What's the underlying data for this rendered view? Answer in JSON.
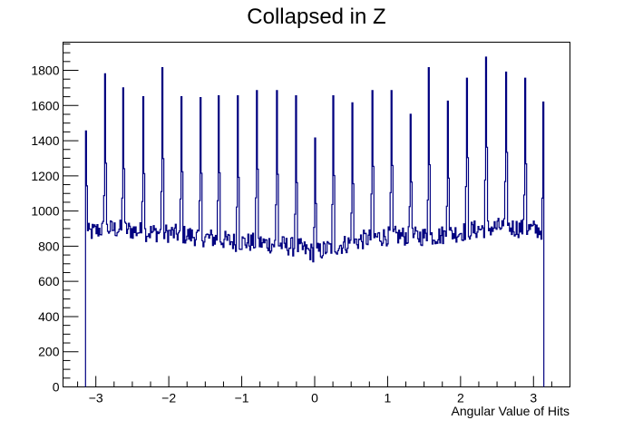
{
  "chart_data": {
    "type": "histogram-step",
    "title": "Collapsed in Z",
    "xlabel": "Angular Value of Hits",
    "ylabel": "",
    "xlim": [
      -3.45,
      3.5
    ],
    "ylim": [
      0,
      1960
    ],
    "x_ticks": [
      -3,
      -2,
      -1,
      0,
      1,
      2,
      3
    ],
    "x_tick_labels": [
      "−3",
      "−2",
      "−1",
      "0",
      "1",
      "2",
      "3"
    ],
    "y_ticks": [
      0,
      200,
      400,
      600,
      800,
      1000,
      1200,
      1400,
      1600,
      1800
    ],
    "y_tick_labels": [
      "0",
      "200",
      "400",
      "600",
      "800",
      "1000",
      "1200",
      "1400",
      "1600",
      "1800"
    ],
    "grid": false,
    "line_color": "#000080",
    "data_range": [
      -3.1416,
      3.1416
    ],
    "baseline": [
      [
        -3.14,
        870
      ],
      [
        -2.9,
        900
      ],
      [
        -2.6,
        895
      ],
      [
        -2.3,
        880
      ],
      [
        -2.0,
        875
      ],
      [
        -1.7,
        860
      ],
      [
        -1.4,
        845
      ],
      [
        -1.1,
        825
      ],
      [
        -0.8,
        820
      ],
      [
        -0.5,
        810
      ],
      [
        -0.2,
        790
      ],
      [
        0.0,
        760
      ],
      [
        0.2,
        790
      ],
      [
        0.5,
        820
      ],
      [
        0.8,
        850
      ],
      [
        1.1,
        860
      ],
      [
        1.4,
        855
      ],
      [
        1.7,
        860
      ],
      [
        2.0,
        880
      ],
      [
        2.3,
        900
      ],
      [
        2.6,
        910
      ],
      [
        2.9,
        900
      ],
      [
        3.14,
        890
      ]
    ],
    "spikes": [
      {
        "x": -3.138,
        "y": 1455
      },
      {
        "x": -2.87,
        "y": 1780
      },
      {
        "x": -2.62,
        "y": 1700
      },
      {
        "x": -2.35,
        "y": 1650
      },
      {
        "x": -2.09,
        "y": 1815
      },
      {
        "x": -1.83,
        "y": 1650
      },
      {
        "x": -1.57,
        "y": 1645
      },
      {
        "x": -1.31,
        "y": 1655
      },
      {
        "x": -1.05,
        "y": 1655
      },
      {
        "x": -0.79,
        "y": 1685
      },
      {
        "x": -0.52,
        "y": 1685
      },
      {
        "x": -0.26,
        "y": 1655
      },
      {
        "x": 0.0,
        "y": 1415
      },
      {
        "x": 0.26,
        "y": 1655
      },
      {
        "x": 0.52,
        "y": 1615
      },
      {
        "x": 0.79,
        "y": 1685
      },
      {
        "x": 1.05,
        "y": 1685
      },
      {
        "x": 1.31,
        "y": 1550
      },
      {
        "x": 1.57,
        "y": 1815
      },
      {
        "x": 1.83,
        "y": 1625
      },
      {
        "x": 2.09,
        "y": 1755
      },
      {
        "x": 2.35,
        "y": 1875
      },
      {
        "x": 2.62,
        "y": 1790
      },
      {
        "x": 2.88,
        "y": 1755
      },
      {
        "x": 3.138,
        "y": 1620
      }
    ]
  }
}
